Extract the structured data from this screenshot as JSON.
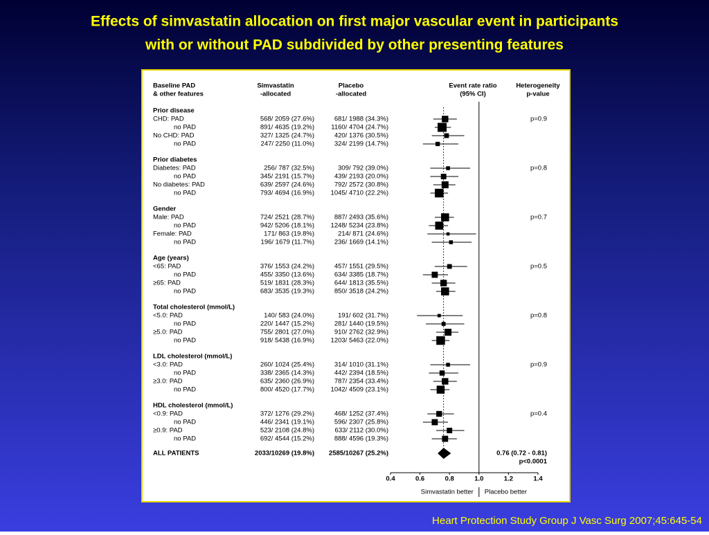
{
  "title": [
    "Effects of simvastatin allocation on first major vascular event in participants",
    "with or without PAD subdivided by other presenting features"
  ],
  "citation": "Heart Protection Study Group J Vasc Surg 2007;45:645-54",
  "chart_data": {
    "type": "forest",
    "headers": {
      "feature": [
        "Baseline PAD",
        "& other features"
      ],
      "simvastatin": [
        "Simvastatin",
        "-allocated"
      ],
      "placebo": [
        "Placebo",
        "-allocated"
      ],
      "ratio": [
        "Event rate ratio",
        "(95% CI)"
      ],
      "heterogeneity": [
        "Heterogeneity",
        "p-value"
      ]
    },
    "groups": [
      {
        "name": "Prior disease",
        "p": "p=0.9",
        "rows": [
          {
            "label": "CHD: PAD",
            "simvastatin": "568/  2059 (27.6%)",
            "placebo": "681/  1988 (34.3%)",
            "ratio": 0.77,
            "lower": 0.69,
            "upper": 0.85
          },
          {
            "label": "no PAD",
            "simvastatin": "891/  4635 (19.2%)",
            "placebo": "1160/  4704 (24.7%)",
            "ratio": 0.75,
            "lower": 0.7,
            "upper": 0.81
          },
          {
            "label": "No CHD: PAD",
            "simvastatin": "327/  1325 (24.7%)",
            "placebo": "420/  1376 (30.5%)",
            "ratio": 0.78,
            "lower": 0.68,
            "upper": 0.9
          },
          {
            "label": "no PAD",
            "simvastatin": "247/  2250 (11.0%)",
            "placebo": "324/  2199 (14.7%)",
            "ratio": 0.72,
            "lower": 0.62,
            "upper": 0.86
          }
        ]
      },
      {
        "name": "Prior diabetes",
        "p": "p=0.8",
        "rows": [
          {
            "label": "Diabetes: PAD",
            "simvastatin": "256/    787 (32.5%)",
            "placebo": "309/    792 (39.0%)",
            "ratio": 0.79,
            "lower": 0.67,
            "upper": 0.94
          },
          {
            "label": "no PAD",
            "simvastatin": "345/  2191 (15.7%)",
            "placebo": "439/  2193 (20.0%)",
            "ratio": 0.76,
            "lower": 0.67,
            "upper": 0.86
          },
          {
            "label": "No diabetes: PAD",
            "simvastatin": "639/  2597 (24.6%)",
            "placebo": "792/  2572 (30.8%)",
            "ratio": 0.77,
            "lower": 0.69,
            "upper": 0.84
          },
          {
            "label": "no PAD",
            "simvastatin": "793/  4694 (16.9%)",
            "placebo": "1045/  4710 (22.2%)",
            "ratio": 0.73,
            "lower": 0.67,
            "upper": 0.79
          }
        ]
      },
      {
        "name": "Gender",
        "p": "p=0.7",
        "rows": [
          {
            "label": "Male: PAD",
            "simvastatin": "724/  2521 (28.7%)",
            "placebo": "887/  2493 (35.6%)",
            "ratio": 0.77,
            "lower": 0.7,
            "upper": 0.83
          },
          {
            "label": "no PAD",
            "simvastatin": "942/  5206 (18.1%)",
            "placebo": "1248/  5234 (23.8%)",
            "ratio": 0.73,
            "lower": 0.66,
            "upper": 0.79
          },
          {
            "label": "Female: PAD",
            "simvastatin": "171/    863 (19.8%)",
            "placebo": "214/    871 (24.6%)",
            "ratio": 0.79,
            "lower": 0.65,
            "upper": 0.98
          },
          {
            "label": "no PAD",
            "simvastatin": "196/  1679 (11.7%)",
            "placebo": "236/  1669 (14.1%)",
            "ratio": 0.81,
            "lower": 0.68,
            "upper": 0.95
          }
        ]
      },
      {
        "name": "Age (years)",
        "p": "p=0.5",
        "rows": [
          {
            "label": "<65: PAD",
            "simvastatin": "376/  1553 (24.2%)",
            "placebo": "457/  1551 (29.5%)",
            "ratio": 0.8,
            "lower": 0.7,
            "upper": 0.92
          },
          {
            "label": "no PAD",
            "simvastatin": "455/  3350 (13.6%)",
            "placebo": "634/  3385 (18.7%)",
            "ratio": 0.7,
            "lower": 0.62,
            "upper": 0.79
          },
          {
            "label": "≥65: PAD",
            "simvastatin": "519/  1831 (28.3%)",
            "placebo": "644/  1813 (35.5%)",
            "ratio": 0.76,
            "lower": 0.68,
            "upper": 0.84
          },
          {
            "label": "no PAD",
            "simvastatin": "683/  3535 (19.3%)",
            "placebo": "850/  3518 (24.2%)",
            "ratio": 0.77,
            "lower": 0.71,
            "upper": 0.84
          }
        ]
      },
      {
        "name": "Total cholesterol (mmol/L)",
        "p": "p=0.8",
        "rows": [
          {
            "label": "<5.0: PAD",
            "simvastatin": "140/    583 (24.0%)",
            "placebo": "191/    602 (31.7%)",
            "ratio": 0.73,
            "lower": 0.58,
            "upper": 0.89
          },
          {
            "label": "no PAD",
            "simvastatin": "220/  1447 (15.2%)",
            "placebo": "281/  1440 (19.5%)",
            "ratio": 0.76,
            "lower": 0.64,
            "upper": 0.9
          },
          {
            "label": "≥5.0: PAD",
            "simvastatin": "755/  2801 (27.0%)",
            "placebo": "910/  2762 (32.9%)",
            "ratio": 0.79,
            "lower": 0.71,
            "upper": 0.86
          },
          {
            "label": "no PAD",
            "simvastatin": "918/  5438 (16.9%)",
            "placebo": "1203/  5463 (22.0%)",
            "ratio": 0.74,
            "lower": 0.68,
            "upper": 0.8
          }
        ]
      },
      {
        "name": "LDL cholesterol (mmol/L)",
        "p": "p=0.9",
        "rows": [
          {
            "label": "<3.0: PAD",
            "simvastatin": "260/  1024 (25.4%)",
            "placebo": "314/  1010 (31.1%)",
            "ratio": 0.79,
            "lower": 0.67,
            "upper": 0.94
          },
          {
            "label": "no PAD",
            "simvastatin": "338/  2365 (14.3%)",
            "placebo": "442/  2394 (18.5%)",
            "ratio": 0.75,
            "lower": 0.66,
            "upper": 0.86
          },
          {
            "label": "≥3.0: PAD",
            "simvastatin": "635/  2360 (26.9%)",
            "placebo": "787/  2354 (33.4%)",
            "ratio": 0.77,
            "lower": 0.69,
            "upper": 0.85
          },
          {
            "label": "no PAD",
            "simvastatin": "800/  4520 (17.7%)",
            "placebo": "1042/  4509 (23.1%)",
            "ratio": 0.74,
            "lower": 0.67,
            "upper": 0.8
          }
        ]
      },
      {
        "name": "HDL cholesterol (mmol/L)",
        "p": "p=0.4",
        "rows": [
          {
            "label": "<0.9: PAD",
            "simvastatin": "372/  1276 (29.2%)",
            "placebo": "468/  1252 (37.4%)",
            "ratio": 0.73,
            "lower": 0.65,
            "upper": 0.83
          },
          {
            "label": "no PAD",
            "simvastatin": "446/  2341 (19.1%)",
            "placebo": "596/  2307 (25.8%)",
            "ratio": 0.7,
            "lower": 0.62,
            "upper": 0.79
          },
          {
            "label": "≥0.9: PAD",
            "simvastatin": "523/  2108 (24.8%)",
            "placebo": "633/  2112 (30.0%)",
            "ratio": 0.8,
            "lower": 0.71,
            "upper": 0.9
          },
          {
            "label": "no PAD",
            "simvastatin": "692/  4544 (15.2%)",
            "placebo": "888/  4596 (19.3%)",
            "ratio": 0.77,
            "lower": 0.68,
            "upper": 0.85
          }
        ]
      }
    ],
    "overall": {
      "label": "ALL PATIENTS",
      "simvastatin": "2033/10269 (19.8%)",
      "placebo": "2585/10267 (25.2%)",
      "ratio": 0.76,
      "lower": 0.72,
      "upper": 0.81,
      "value_label": "0.76 (0.72 - 0.81)",
      "p": "p<0.0001"
    },
    "xlim": [
      0.4,
      1.4
    ],
    "xticks": [
      0.4,
      0.6,
      0.8,
      {
        "value": 1,
        "label": "1.0"
      },
      1.2,
      1.4
    ],
    "reference": 1,
    "favours": [
      "Simvastatin better",
      "Placebo better"
    ]
  }
}
